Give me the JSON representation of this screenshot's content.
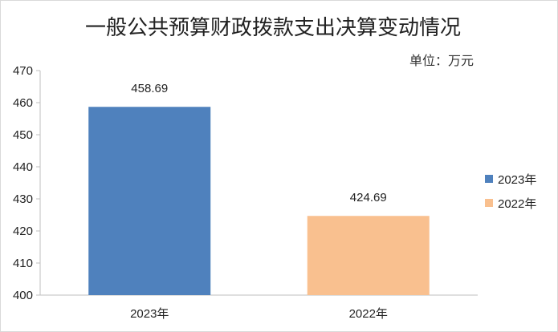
{
  "unit_label": "单位：万元",
  "chart_data": {
    "type": "bar",
    "title": "一般公共预算财政拨款支出决算变动情况",
    "categories": [
      "2023年",
      "2022年"
    ],
    "values": [
      458.69,
      424.69
    ],
    "data_labels": [
      "458.69",
      "424.69"
    ],
    "colors": [
      "#4f81bd",
      "#f9c08f"
    ],
    "ylim": [
      400,
      470
    ],
    "yticks": [
      400,
      410,
      420,
      430,
      440,
      450,
      460,
      470
    ],
    "xlabel": "",
    "ylabel": "",
    "grid": false,
    "legend": {
      "position": "right",
      "entries": [
        "2023年",
        "2022年"
      ]
    }
  }
}
